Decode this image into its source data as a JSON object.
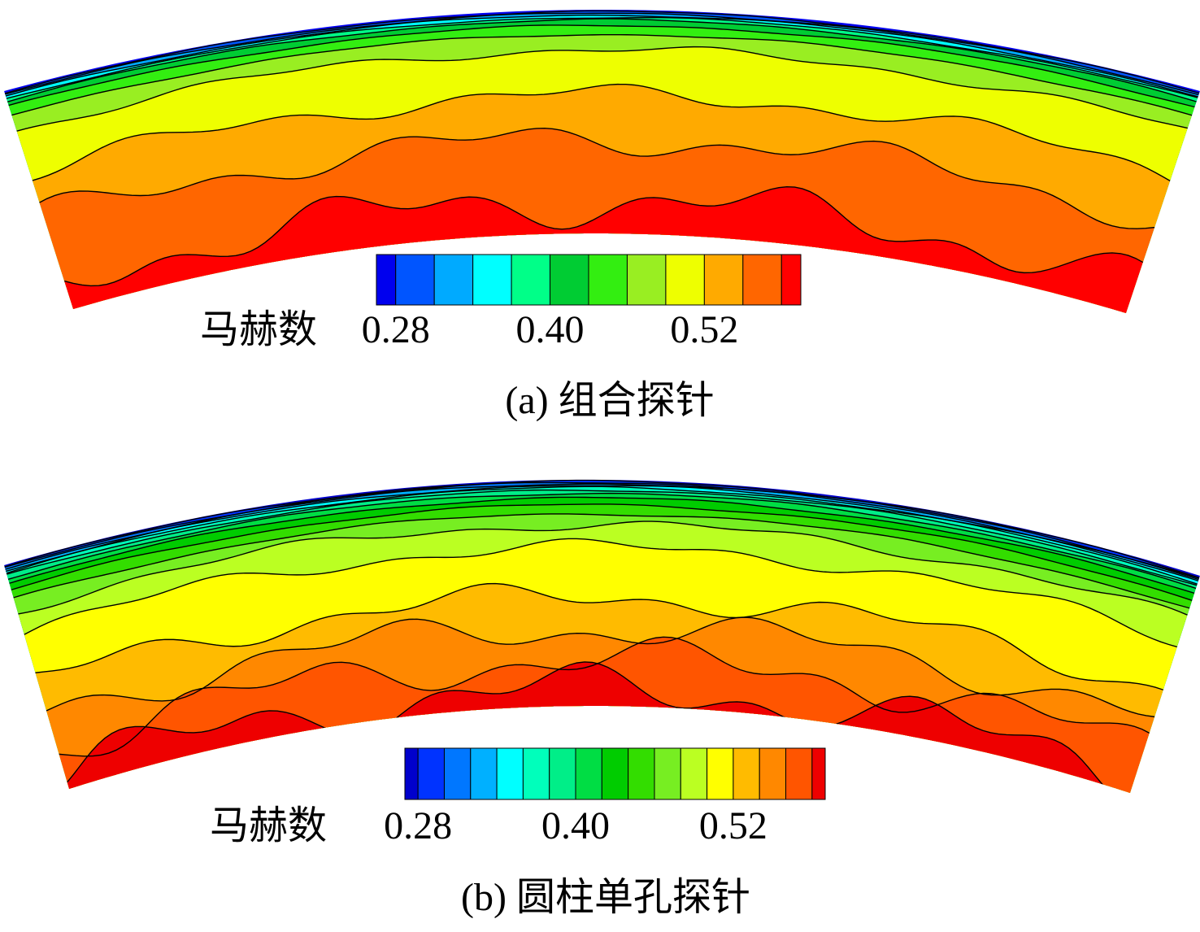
{
  "chart_data": [
    {
      "type": "contour",
      "colorbar": {
        "label": "马赫数",
        "levels": [
          0.265,
          0.28,
          0.31,
          0.34,
          0.37,
          0.4,
          0.43,
          0.46,
          0.49,
          0.52,
          0.55,
          0.58,
          0.595
        ],
        "colors": [
          "#0000ee",
          "#0055ff",
          "#00aaff",
          "#00ffff",
          "#00ff88",
          "#00cc33",
          "#33ee11",
          "#99ee22",
          "#eeff00",
          "#ffaa00",
          "#ff6600",
          "#ff0000"
        ],
        "ticks": [
          0.28,
          {
            "value": 0.4,
            "label": "0.40"
          },
          0.52
        ]
      },
      "caption": "(a) 组合探针"
    },
    {
      "type": "contour",
      "colorbar": {
        "label": "马赫数",
        "levels": [
          0.27,
          0.28,
          0.3,
          0.32,
          0.34,
          0.36,
          0.38,
          0.4,
          0.42,
          0.44,
          0.46,
          0.48,
          0.5,
          0.52,
          0.54,
          0.56,
          0.58,
          0.59
        ],
        "colors": [
          "#0000cc",
          "#0033ff",
          "#0077ff",
          "#00b0ff",
          "#00ffff",
          "#00ffbb",
          "#00ee88",
          "#00dd44",
          "#00cc00",
          "#33dd00",
          "#77ee22",
          "#bbff22",
          "#ffff00",
          "#ffbb00",
          "#ff8800",
          "#ff5500",
          "#ee0000"
        ],
        "ticks": [
          0.28,
          {
            "value": 0.4,
            "label": "0.40"
          },
          0.52
        ]
      },
      "caption": "(b) 圆柱单孔探针"
    }
  ]
}
